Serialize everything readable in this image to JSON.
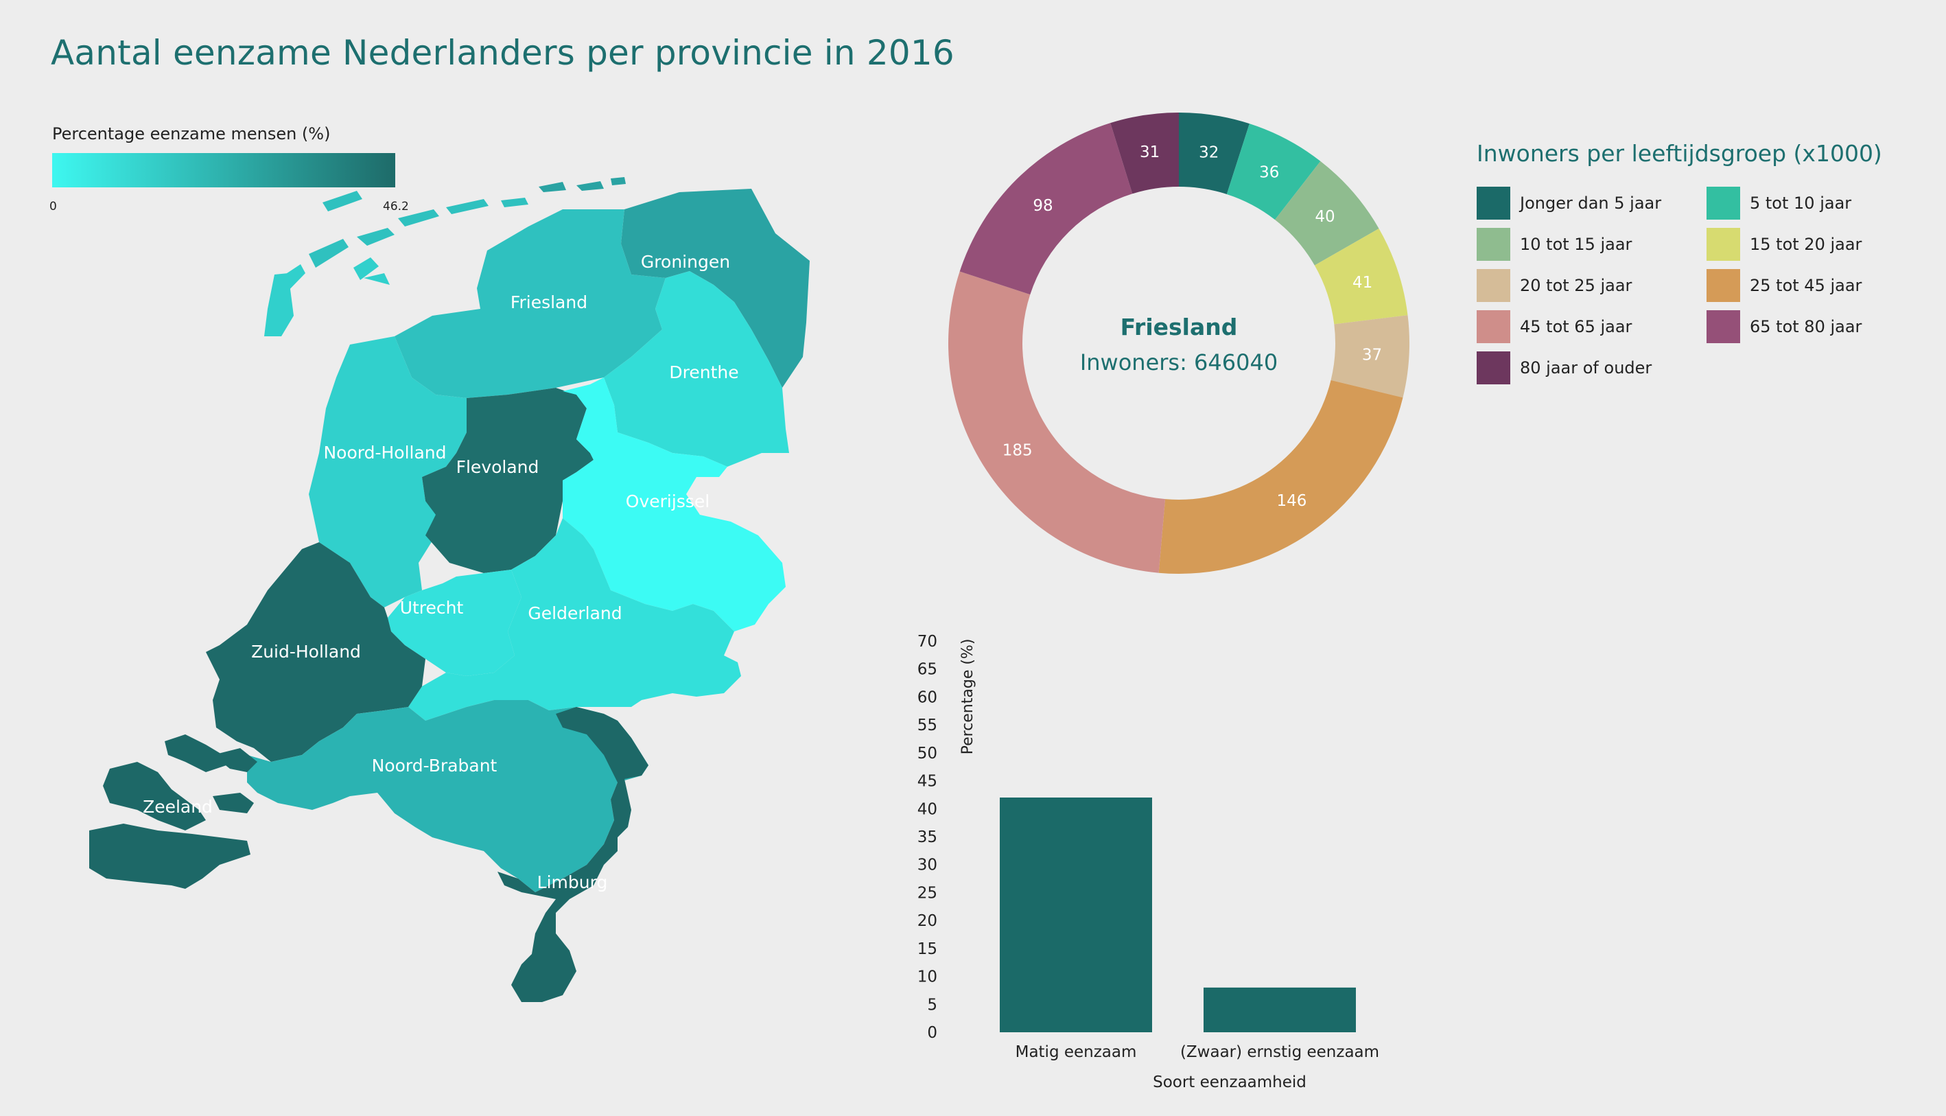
{
  "title": "Aantal eenzame Nederlanders per provincie in 2016",
  "scale": {
    "title": "Percentage eenzame mensen (%)",
    "min_label": "0",
    "max_label": "46.2",
    "color_low": "#3ef7f0",
    "color_high": "#1e6b69"
  },
  "provinces": [
    {
      "name": "Groningen",
      "color": "#2aa3a3"
    },
    {
      "name": "Friesland",
      "color": "#2fc1bf"
    },
    {
      "name": "Drenthe",
      "color": "#33ddd7"
    },
    {
      "name": "Noord-Holland",
      "color": "#31d0cc"
    },
    {
      "name": "Flevoland",
      "color": "#1f6f6d"
    },
    {
      "name": "Overijssel",
      "color": "#3cfbf4"
    },
    {
      "name": "Utrecht",
      "color": "#34e1dc"
    },
    {
      "name": "Gelderland",
      "color": "#33e0da"
    },
    {
      "name": "Zuid-Holland",
      "color": "#1e6a69"
    },
    {
      "name": "Noord-Brabant",
      "color": "#2bb3b2"
    },
    {
      "name": "Zeeland",
      "color": "#1d6867"
    },
    {
      "name": "Limburg",
      "color": "#1d6867"
    }
  ],
  "donut": {
    "center_name": "Friesland",
    "center_value": "Inwoners: 646040"
  },
  "legend_title": "Inwoners per leeftijdsgroep (x1000)",
  "chart_data": [
    {
      "type": "pie",
      "title": "Inwoners per leeftijdsgroep (x1000)",
      "donut": true,
      "legend_position": "right",
      "slices": [
        {
          "label": "Jonger dan 5 jaar",
          "value": 32,
          "color": "#1b6a68"
        },
        {
          "label": "5 tot 10 jaar",
          "value": 36,
          "color": "#33bfa1"
        },
        {
          "label": "10 tot 15 jaar",
          "value": 40,
          "color": "#8fbc8f"
        },
        {
          "label": "15 tot 20 jaar",
          "value": 41,
          "color": "#d7db70"
        },
        {
          "label": "20 tot 25 jaar",
          "value": 37,
          "color": "#d5bc98"
        },
        {
          "label": "25 tot 45 jaar",
          "value": 146,
          "color": "#d59b57"
        },
        {
          "label": "45 tot 65 jaar",
          "value": 185,
          "color": "#cf8e8a"
        },
        {
          "label": "65 tot 80 jaar",
          "value": 98,
          "color": "#955078"
        },
        {
          "label": "80 jaar of ouder",
          "value": 31,
          "color": "#6d375e"
        }
      ]
    },
    {
      "type": "bar",
      "categories": [
        "Matig eenzaam",
        "(Zwaar) ernstig eenzaam"
      ],
      "values": [
        42,
        8
      ],
      "xlabel": "Soort eenzaamheid",
      "ylabel": "Percentage (%)",
      "ylim": [
        0,
        70
      ],
      "yticks": [
        0,
        5,
        10,
        15,
        20,
        25,
        30,
        35,
        40,
        45,
        50,
        55,
        60,
        65,
        70
      ],
      "bar_color": "#1b6a68"
    }
  ]
}
